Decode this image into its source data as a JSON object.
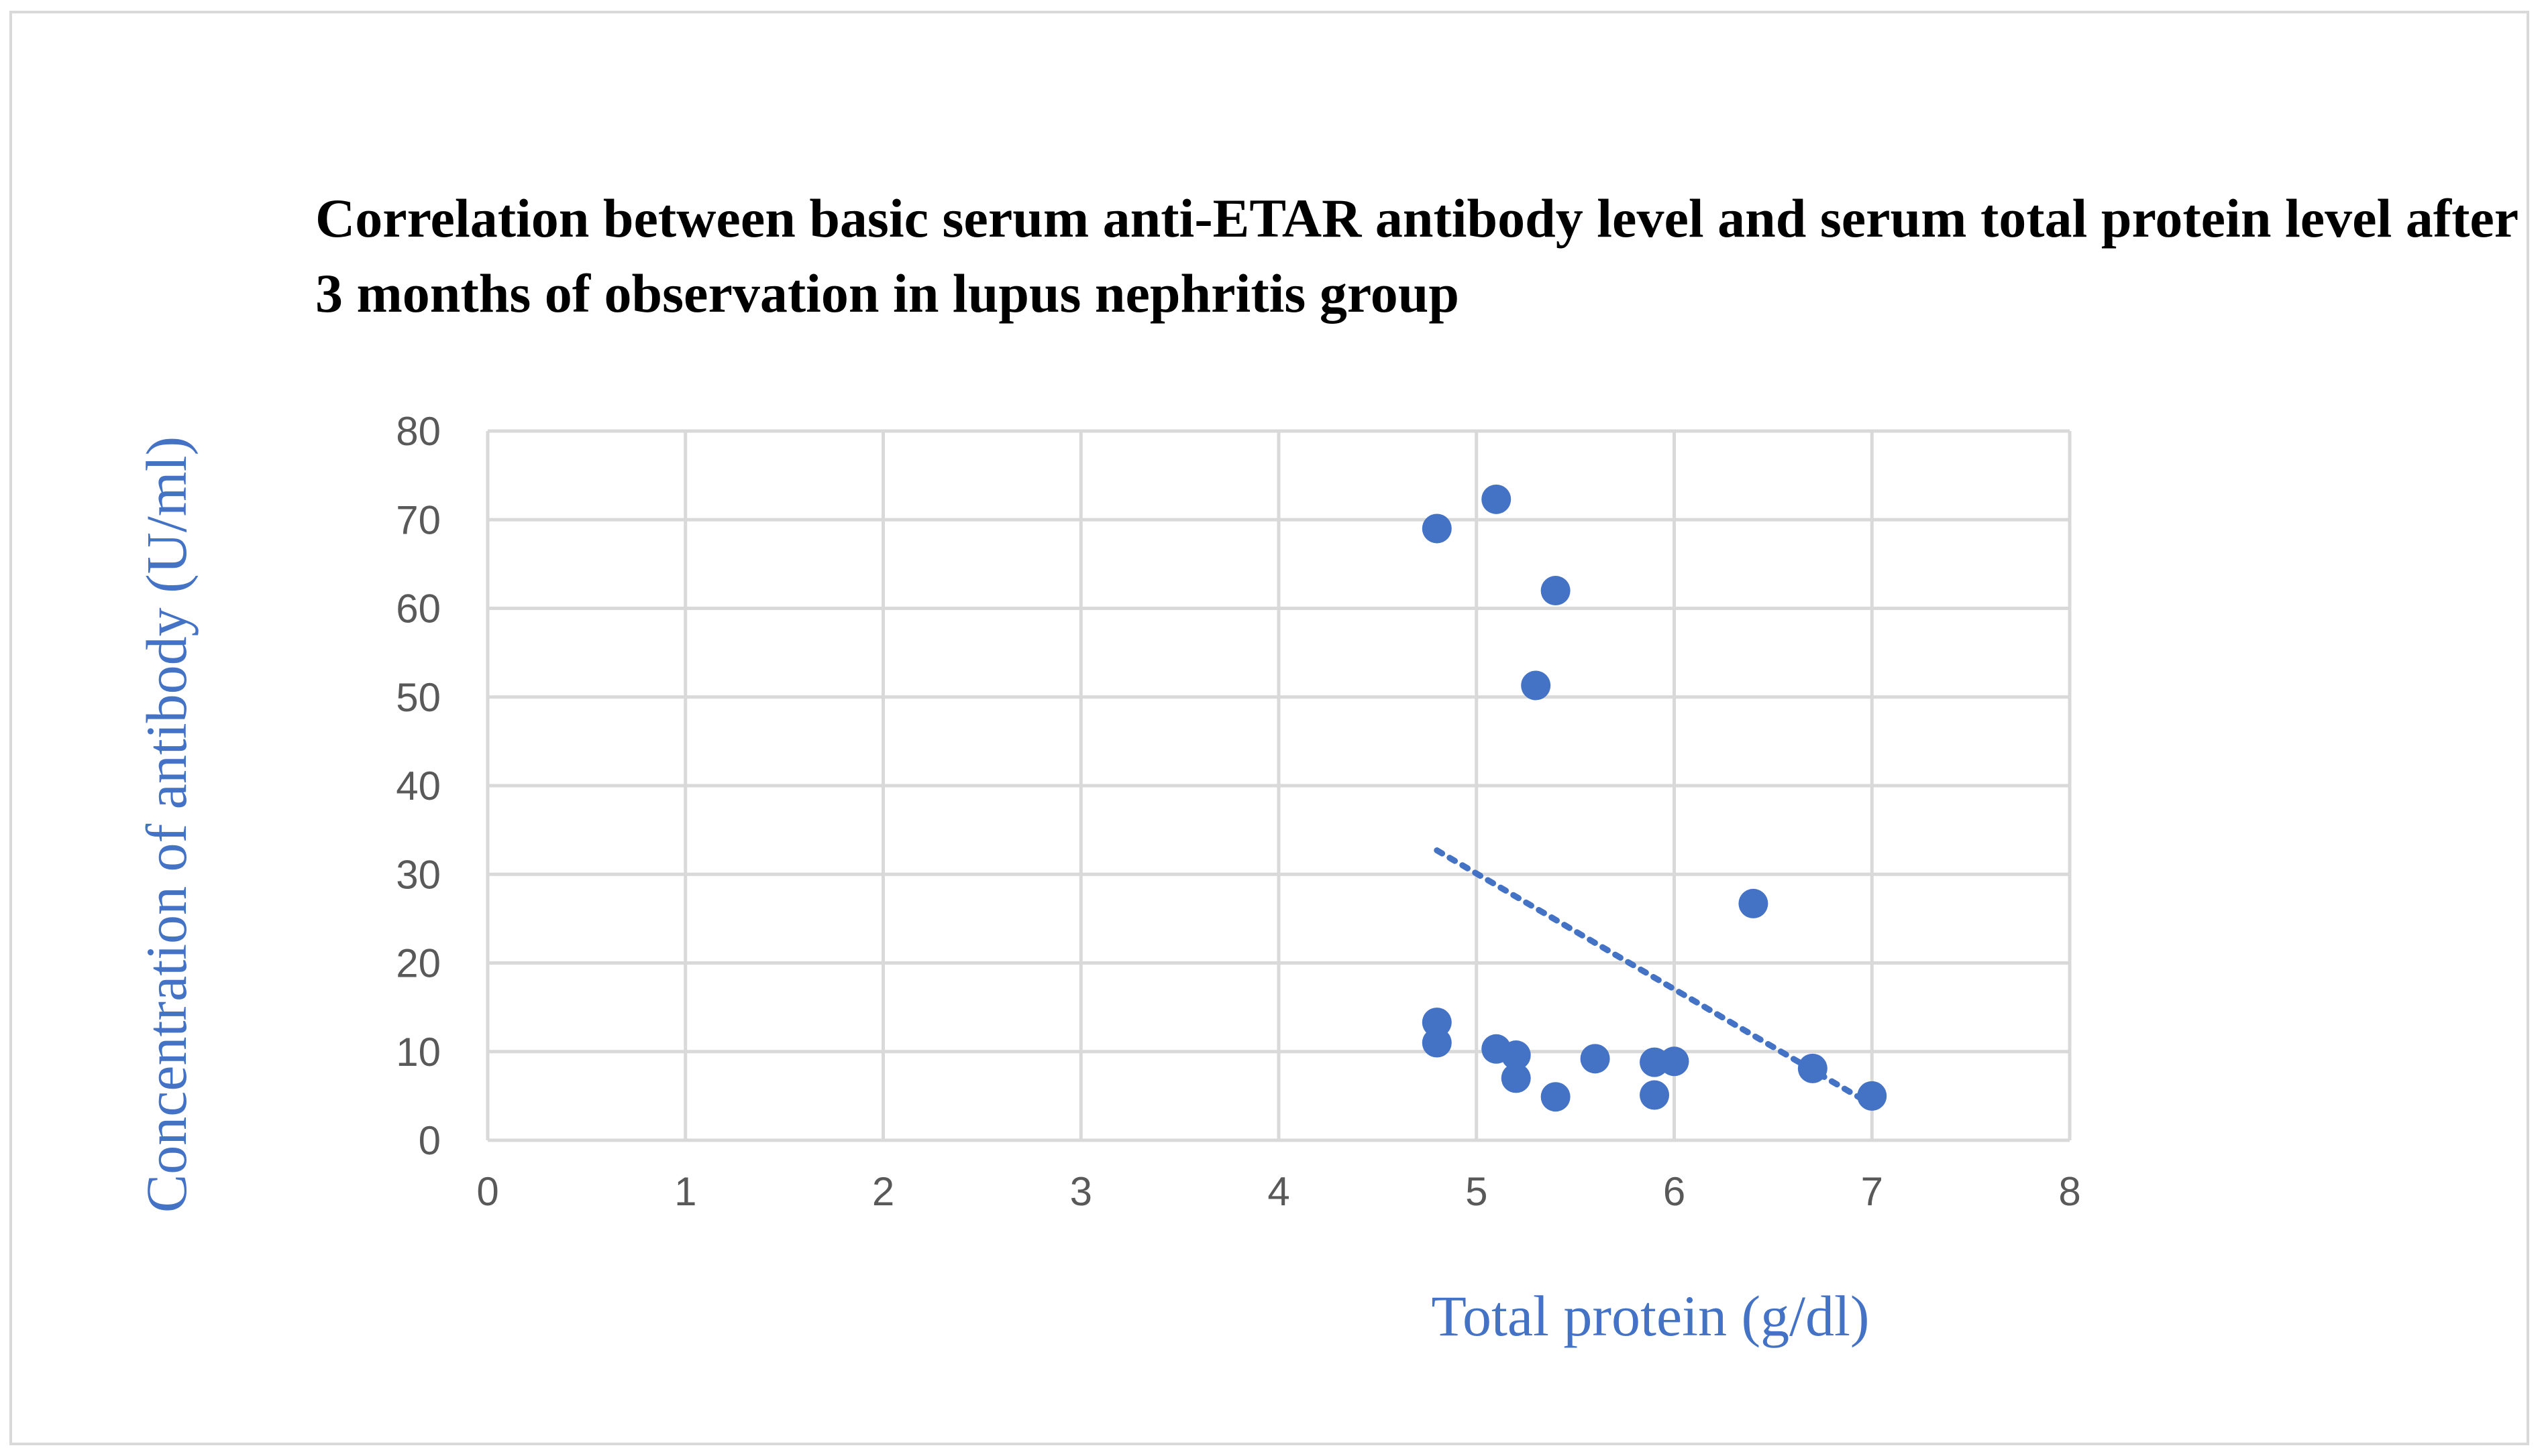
{
  "chart_data": {
    "type": "scatter",
    "title": "Correlation between basic serum anti-ETAR antibody level and serum total protein level after 3 months of observation in lupus nephritis group",
    "xlabel": "Total protein (g/dl)",
    "ylabel": "Concentration of antibody (U/ml)",
    "xlim": [
      0,
      8
    ],
    "ylim": [
      0,
      80
    ],
    "x_ticks": [
      "0",
      "1",
      "2",
      "3",
      "4",
      "5",
      "6",
      "7",
      "8"
    ],
    "y_ticks": [
      "0",
      "10",
      "20",
      "30",
      "40",
      "50",
      "60",
      "70",
      "80"
    ],
    "grid": true,
    "series": [
      {
        "name": "Anti-ETAR antibody",
        "color": "#4472c4",
        "points": [
          {
            "x": 4.8,
            "y": 69
          },
          {
            "x": 5.1,
            "y": 72.3
          },
          {
            "x": 5.4,
            "y": 62
          },
          {
            "x": 5.3,
            "y": 51.3
          },
          {
            "x": 6.4,
            "y": 26.7
          },
          {
            "x": 4.8,
            "y": 13.3
          },
          {
            "x": 4.8,
            "y": 11
          },
          {
            "x": 5.1,
            "y": 10.3
          },
          {
            "x": 5.2,
            "y": 9.6
          },
          {
            "x": 5.2,
            "y": 7
          },
          {
            "x": 5.4,
            "y": 4.9
          },
          {
            "x": 5.6,
            "y": 9.2
          },
          {
            "x": 5.9,
            "y": 8.8
          },
          {
            "x": 6.0,
            "y": 8.9
          },
          {
            "x": 5.9,
            "y": 5.1
          },
          {
            "x": 6.7,
            "y": 8.1
          },
          {
            "x": 7.0,
            "y": 5.0
          }
        ]
      }
    ],
    "trendline": {
      "type": "linear",
      "style": "dotted",
      "color": "#4472c4",
      "from": {
        "x": 4.8,
        "y": 32.7
      },
      "to": {
        "x": 7.0,
        "y": 4.0
      }
    },
    "title_color": "#000000",
    "axis_title_color": "#4472c4",
    "grid_color": "#d9d9d9",
    "tick_color": "#595959"
  }
}
